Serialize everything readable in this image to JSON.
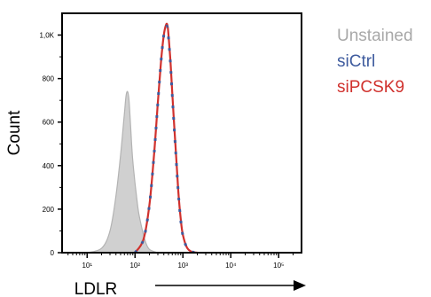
{
  "chart_data": {
    "type": "area",
    "title": "",
    "xlabel": "LDLR",
    "ylabel": "Count",
    "x_scale": "log",
    "xlim": [
      3,
      300000
    ],
    "ylim": [
      0,
      1100
    ],
    "x_tick_labels": [
      "10¹",
      "10²",
      "10³",
      "10⁴",
      "10⁵"
    ],
    "x_tick_values": [
      10,
      100,
      1000,
      10000,
      100000
    ],
    "y_ticks": [
      0,
      200,
      400,
      600,
      800,
      1000
    ],
    "y_tick_labels": [
      "0",
      "200",
      "400",
      "600",
      "800",
      "1,0K"
    ],
    "legend_position": "right",
    "series": [
      {
        "name": "Unstained",
        "color": "#b3b3b3",
        "fill": "#d0d0d0",
        "x": [
          10,
          20,
          30,
          40,
          50,
          60,
          65,
          70,
          75,
          80,
          85,
          90,
          100,
          110,
          120,
          140,
          160,
          180,
          200,
          250,
          300,
          400,
          500
        ],
        "y": [
          0,
          20,
          100,
          260,
          450,
          640,
          720,
          740,
          700,
          600,
          500,
          420,
          320,
          240,
          180,
          110,
          60,
          30,
          15,
          5,
          0,
          0,
          0
        ]
      },
      {
        "name": "siCtrl",
        "color": "#3e5b9e",
        "x": [
          100,
          150,
          200,
          250,
          300,
          350,
          400,
          450,
          480,
          500,
          550,
          600,
          700,
          800,
          900,
          1000,
          1200,
          1500,
          2000
        ],
        "y": [
          0,
          60,
          220,
          450,
          690,
          880,
          1000,
          1040,
          1030,
          990,
          870,
          720,
          480,
          280,
          150,
          80,
          25,
          5,
          0
        ]
      },
      {
        "name": "siPCSK9",
        "color": "#d0312d",
        "x": [
          100,
          150,
          200,
          250,
          300,
          350,
          400,
          450,
          480,
          500,
          550,
          600,
          700,
          800,
          900,
          1000,
          1200,
          1500,
          2000
        ],
        "y": [
          0,
          60,
          220,
          450,
          690,
          880,
          1000,
          1050,
          1040,
          1000,
          880,
          730,
          490,
          285,
          155,
          82,
          26,
          5,
          0
        ]
      }
    ]
  }
}
